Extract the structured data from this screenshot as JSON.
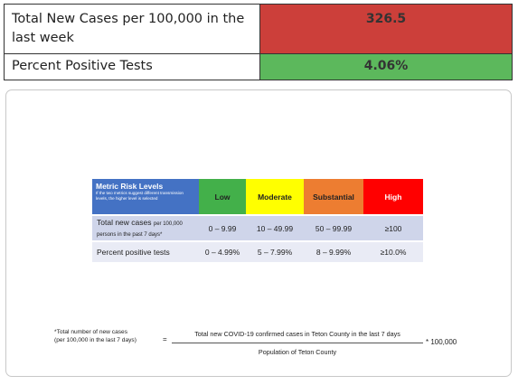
{
  "summary": {
    "rows": [
      {
        "label": "Total New Cases per 100,000 in the last week",
        "value": "326.5",
        "color": "#cc3f3a"
      },
      {
        "label": "Percent Positive Tests",
        "value": "4.06%",
        "color": "#5cb85c"
      }
    ]
  },
  "risk_table": {
    "title": "Metric Risk Levels",
    "subtitle": "If the two metrics suggest different transmission levels, the higher level is selected",
    "levels": [
      {
        "label": "Low",
        "color": "#43b04a"
      },
      {
        "label": "Moderate",
        "color": "#ffff00"
      },
      {
        "label": "Substantial",
        "color": "#ed7d31"
      },
      {
        "label": "High",
        "color": "#ff0000"
      }
    ],
    "rows": [
      {
        "label": "Total new cases",
        "label_small": "per 100,000 persons in the past 7 days*",
        "values": [
          "0 – 9.99",
          "10 – 49.99",
          "50 – 99.99",
          "≥100"
        ]
      },
      {
        "label": "Percent positive tests",
        "label_small": "",
        "values": [
          "0 – 4.99%",
          "5 – 7.99%",
          "8 – 9.99%",
          "≥10.0%"
        ]
      }
    ]
  },
  "formula": {
    "left_line1": "*Total number of new cases",
    "left_line2": "(per 100,000 in the last 7 days)",
    "equals": "=",
    "numerator": "Total new COVID-19 confirmed cases in Teton County in the last 7 days",
    "denominator": "Population of Teton County",
    "multiplier": "* 100,000"
  }
}
